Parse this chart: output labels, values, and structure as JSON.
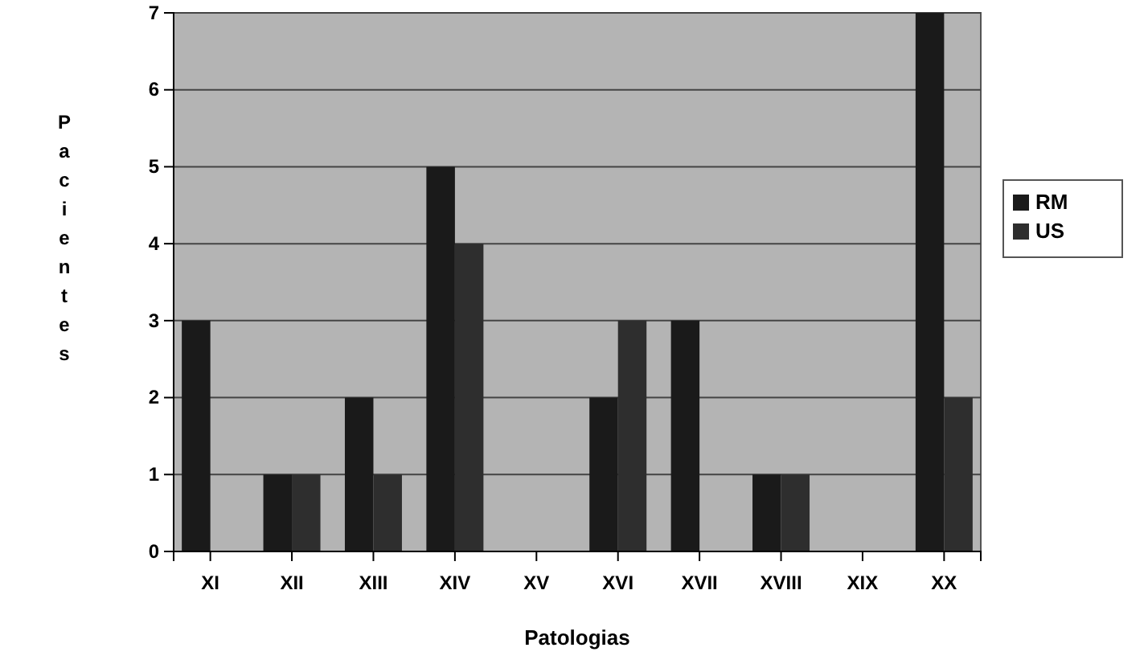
{
  "chart_data": {
    "type": "bar",
    "xlabel": "Patologias",
    "ylabel": "Pacientes",
    "categories": [
      "XI",
      "XII",
      "XIII",
      "XIV",
      "XV",
      "XVI",
      "XVII",
      "XVIII",
      "XIX",
      "XX"
    ],
    "series": [
      {
        "name": "RM",
        "color": "#1a1a1a",
        "values": [
          3,
          1,
          2,
          5,
          0,
          2,
          3,
          1,
          0,
          7
        ]
      },
      {
        "name": "US",
        "color": "#2e2e2e",
        "values": [
          0,
          1,
          1,
          4,
          0,
          3,
          0,
          1,
          0,
          2
        ]
      }
    ],
    "ylim": [
      0,
      7
    ],
    "yticks": [
      0,
      1,
      2,
      3,
      4,
      5,
      6,
      7
    ],
    "grid": "y",
    "legend": "right"
  }
}
